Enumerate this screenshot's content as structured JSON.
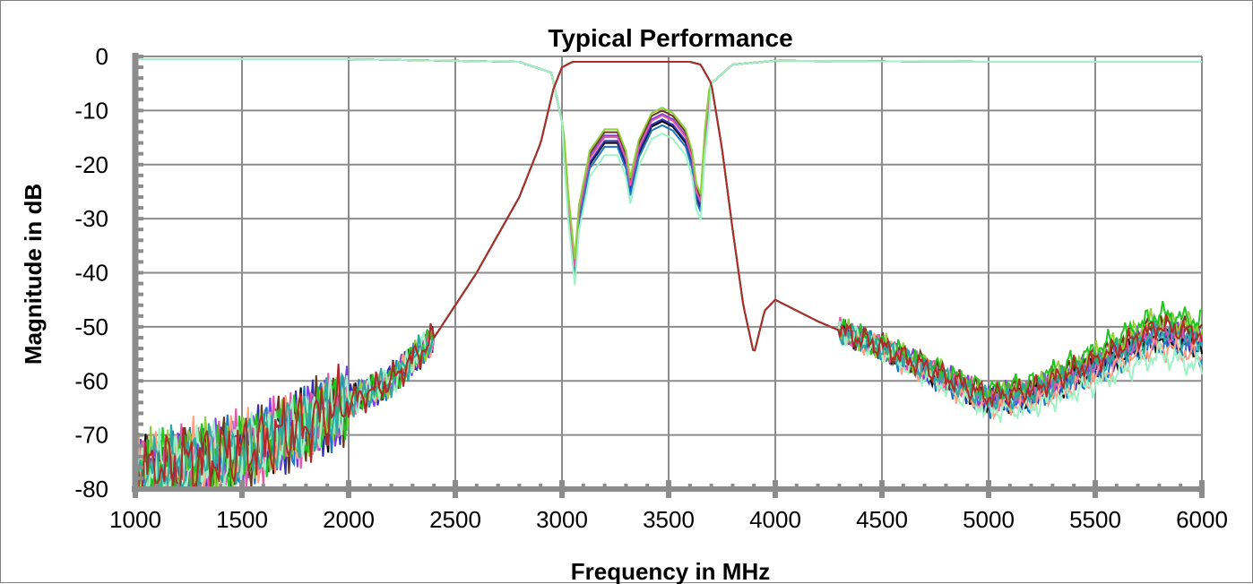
{
  "chart_data": {
    "type": "line",
    "title": "Typical Performance",
    "xlabel": "Frequency in MHz",
    "ylabel": "Magnitude in dB",
    "xlim": [
      1000,
      6000
    ],
    "ylim": [
      -80,
      0
    ],
    "x_ticks": [
      "1000",
      "1500",
      "2000",
      "2500",
      "3000",
      "3500",
      "4000",
      "4500",
      "5000",
      "5500",
      "6000"
    ],
    "y_ticks": [
      "0",
      "-10",
      "-20",
      "-30",
      "-40",
      "-50",
      "-60",
      "-70",
      "-80"
    ],
    "grid": true,
    "legend": "none",
    "transmission_shape": {
      "x": [
        1000,
        1500,
        1800,
        2000,
        2200,
        2400,
        2600,
        2800,
        2900,
        2960,
        3000,
        3050,
        3200,
        3400,
        3600,
        3650,
        3700,
        3750,
        3800,
        3850,
        3900,
        3950,
        4000,
        4200,
        4500,
        5000,
        5200,
        5500,
        5800,
        6000
      ],
      "y": [
        -77,
        -73,
        -68,
        -64,
        -60,
        -52,
        -40,
        -26,
        -16,
        -6,
        -2,
        -1,
        -1,
        -1,
        -1,
        -1.5,
        -5,
        -17,
        -32,
        -46,
        -55,
        -47,
        -45,
        -49,
        -54,
        -64,
        -63,
        -58,
        -52,
        -54
      ]
    },
    "reflection_shape": {
      "x": [
        1000,
        2000,
        2800,
        2950,
        3000,
        3030,
        3060,
        3080,
        3130,
        3200,
        3260,
        3300,
        3320,
        3360,
        3420,
        3470,
        3520,
        3580,
        3610,
        3630,
        3650,
        3670,
        3700,
        3800,
        4000,
        5000,
        6000
      ],
      "y": [
        -0.5,
        -0.5,
        -1,
        -3,
        -12,
        -28,
        -40,
        -30,
        -20,
        -16,
        -16,
        -20,
        -25,
        -18,
        -13,
        -12,
        -13,
        -16,
        -20,
        -26,
        -28,
        -16,
        -5,
        -1.5,
        -0.8,
        -1,
        -1
      ]
    },
    "series": [
      {
        "color": "#000000",
        "offset": 0.0,
        "reflection": true
      },
      {
        "color": "#2f2fb0",
        "offset": 0.4,
        "reflection": true
      },
      {
        "color": "#7b3fe0",
        "offset": 1.5,
        "reflection": true
      },
      {
        "color": "#1f77c4",
        "offset": -0.8,
        "reflection": true
      },
      {
        "color": "#6b3a1e",
        "offset": 2.2,
        "reflection": true
      },
      {
        "color": "#e05aa8",
        "offset": 1.2,
        "reflection": true
      },
      {
        "color": "#ff9f7f",
        "offset": -1.2,
        "reflection": false
      },
      {
        "color": "#8fcf3a",
        "offset": 2.8,
        "reflection": true
      },
      {
        "color": "#22c322",
        "offset": 3.5,
        "reflection": false
      },
      {
        "color": "#9ff2c6",
        "offset": -2.5,
        "reflection": true
      },
      {
        "color": "#2aa9a0",
        "offset": 0.9,
        "reflection": false
      },
      {
        "color": "#b02a2a",
        "offset": 1.8,
        "reflection": false
      }
    ]
  }
}
